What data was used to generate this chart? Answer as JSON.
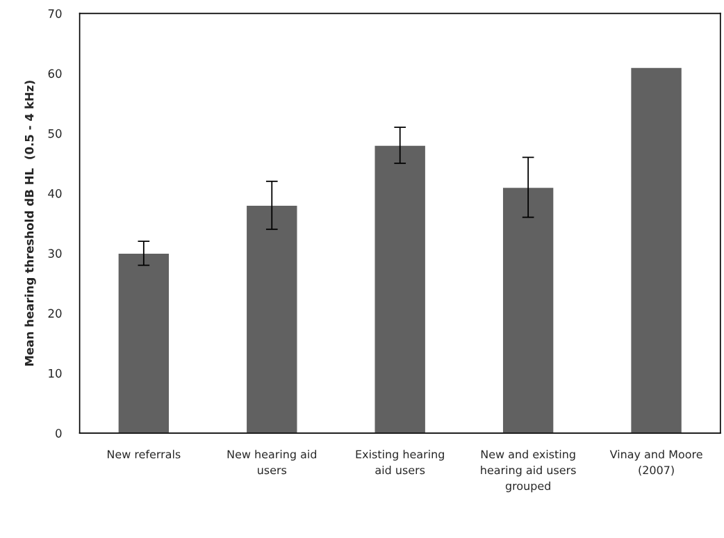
{
  "chart_data": {
    "type": "bar",
    "ylabel": "Mean hearing threshold dB HL  (0.5 - 4 kHz)",
    "categories": [
      "New referrals",
      "New hearing aid users",
      "Existing hearing aid users",
      "New and existing hearing aid users grouped",
      "Vinay and Moore (2007)"
    ],
    "values": [
      30,
      38,
      48,
      41,
      61
    ],
    "errors": [
      2,
      4,
      3,
      5,
      null
    ],
    "color": "#616161",
    "ylim": [
      0,
      70
    ],
    "yticks": [
      0,
      10,
      20,
      30,
      40,
      50,
      60,
      70
    ],
    "grid": false,
    "legend": false
  }
}
